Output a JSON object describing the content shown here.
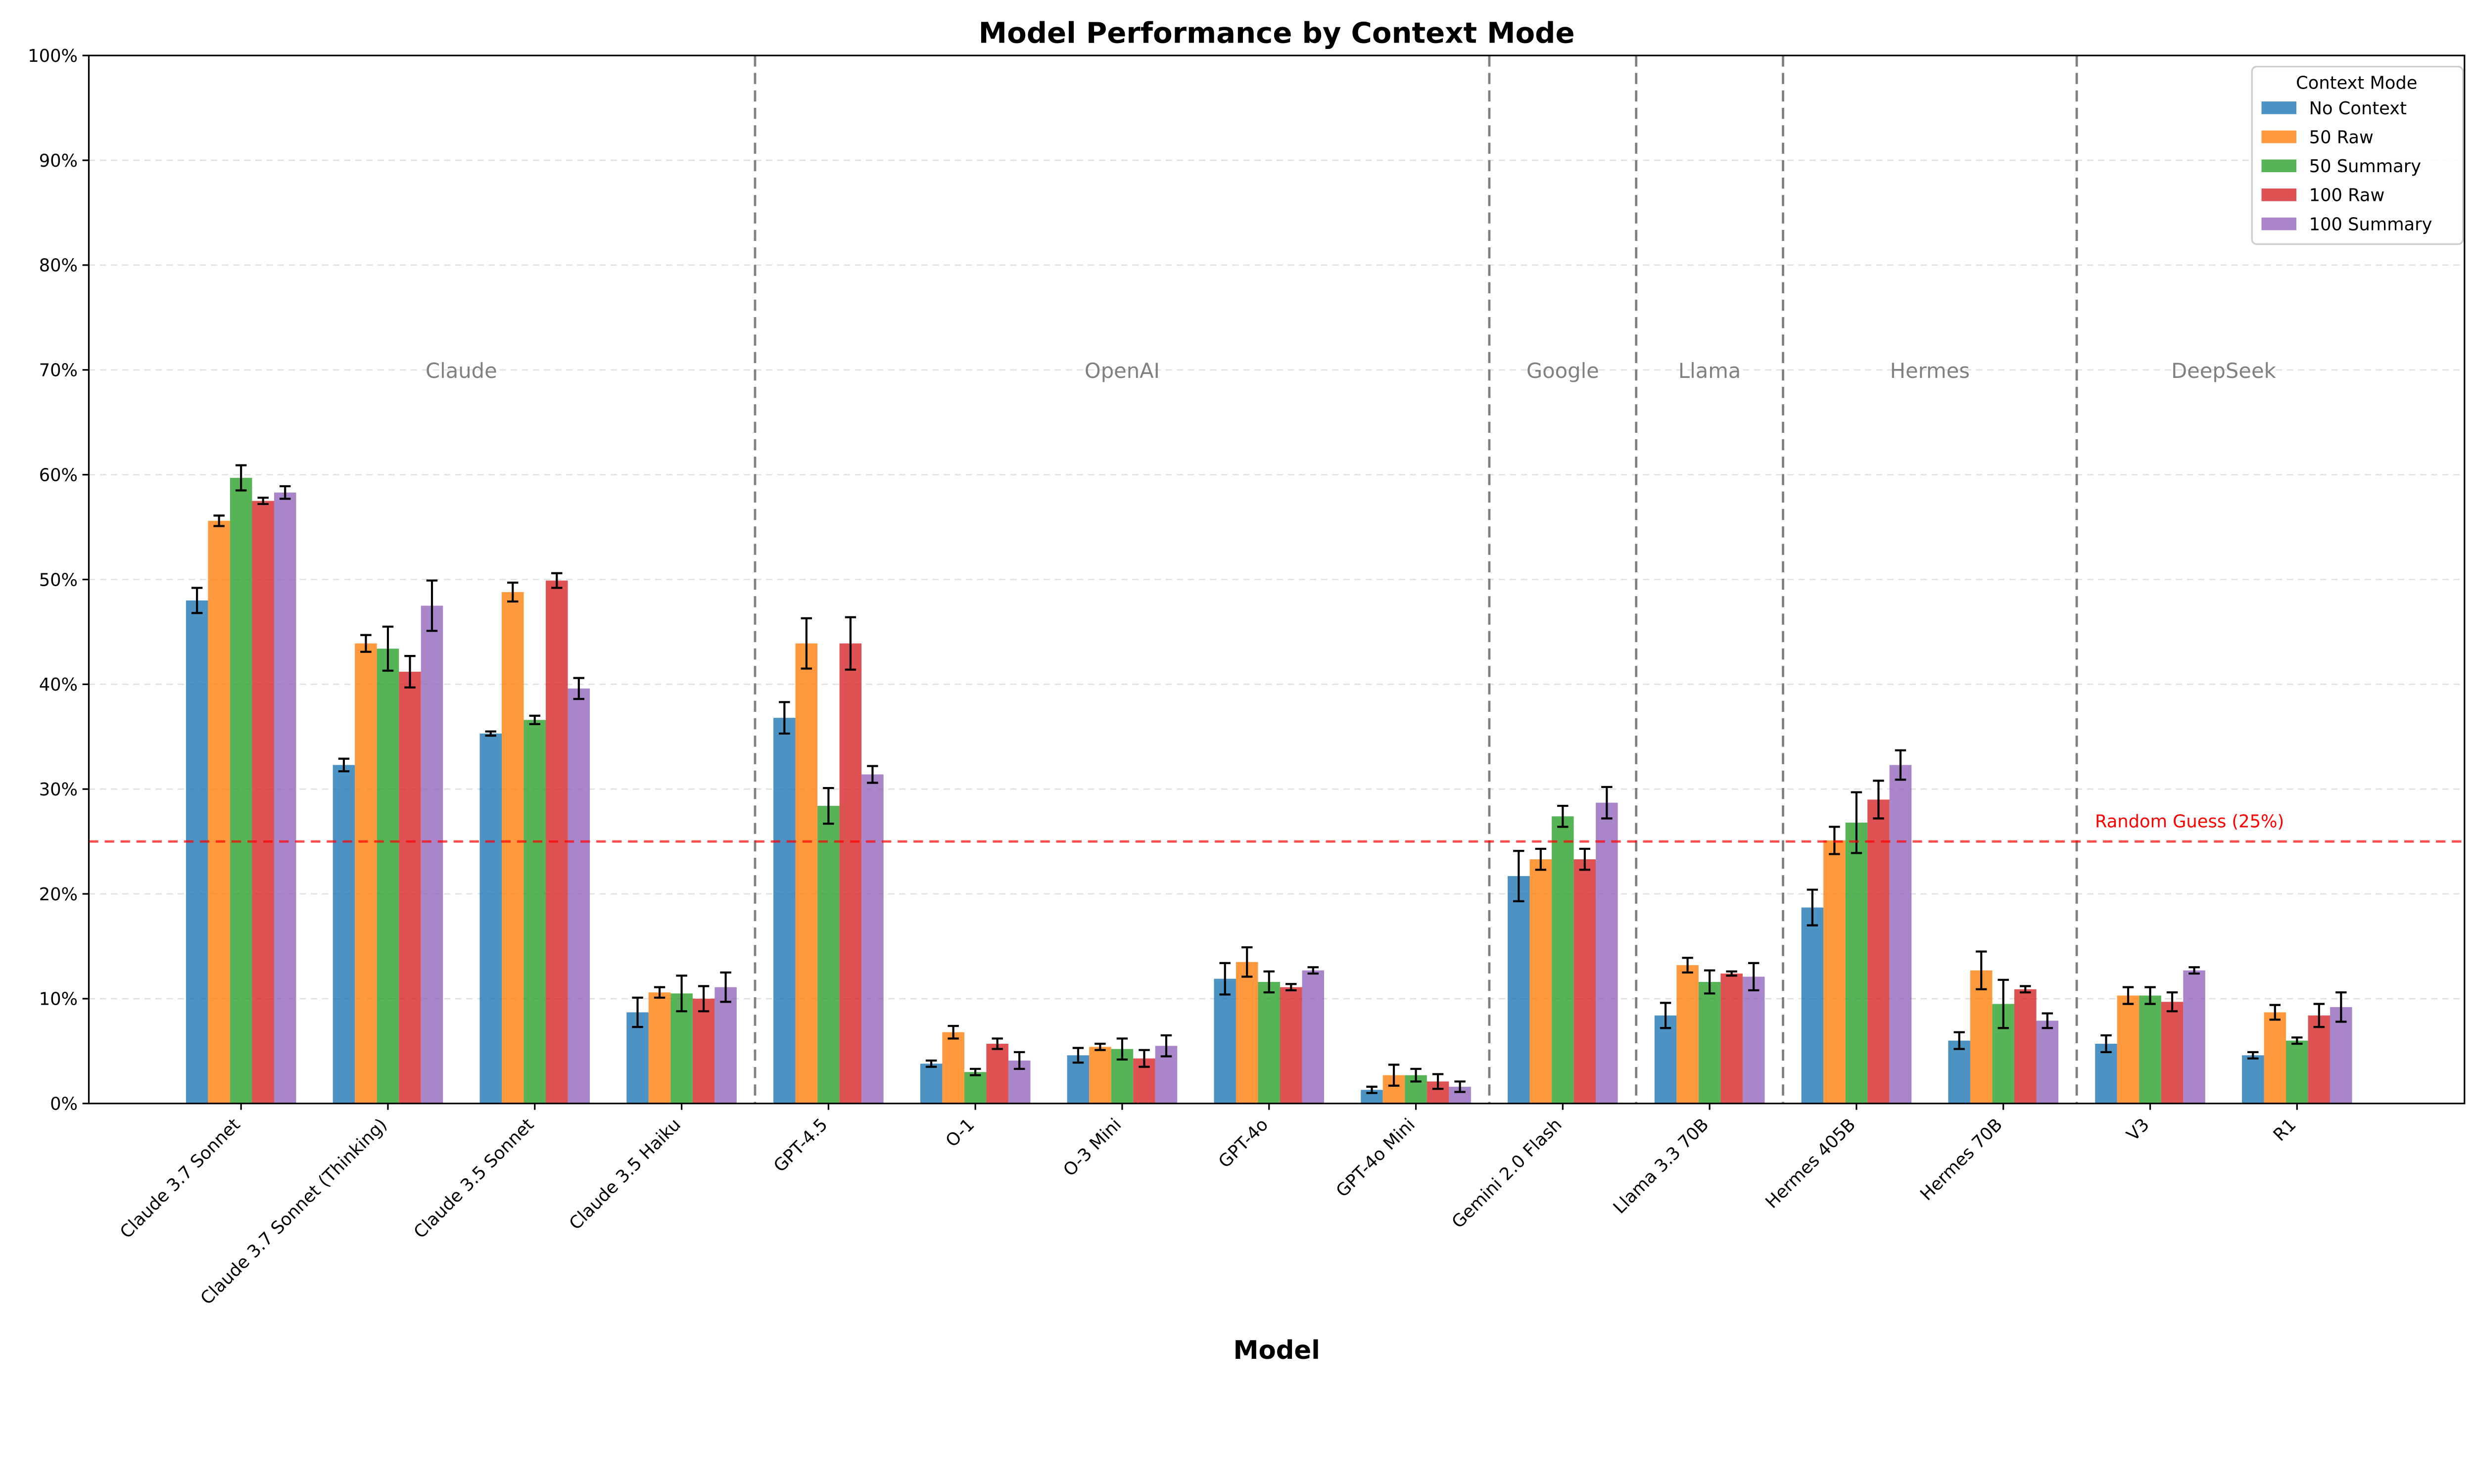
{
  "chart_data": {
    "type": "bar",
    "title": "Model Performance by Context Mode",
    "xlabel": "Model",
    "ylabel": "",
    "ylim": [
      0,
      100
    ],
    "y_unit": "%",
    "yticks": [
      "0%",
      "10%",
      "20%",
      "30%",
      "40%",
      "50%",
      "60%",
      "70%",
      "80%",
      "90%",
      "100%"
    ],
    "grid": "horizontal dashed",
    "legend": {
      "title": "Context Mode",
      "placement": "top-right"
    },
    "categories": [
      "Claude 3.7 Sonnet",
      "Claude 3.7 Sonnet (Thinking)",
      "Claude 3.5 Sonnet",
      "Claude 3.5 Haiku",
      "GPT-4.5",
      "O-1",
      "O-3 Mini",
      "GPT-4o",
      "GPT-4o Mini",
      "Gemini 2.0 Flash",
      "Llama 3.3 70B",
      "Hermes 405B",
      "Hermes 70B",
      "V3",
      "R1"
    ],
    "series": [
      {
        "name": "No Context",
        "color": "#1f77b4",
        "values": [
          48.0,
          32.3,
          35.3,
          8.7,
          36.8,
          3.8,
          4.6,
          11.9,
          1.3,
          21.7,
          8.4,
          18.7,
          6.0,
          5.7,
          4.6
        ],
        "errors": [
          1.2,
          0.6,
          0.2,
          1.4,
          1.5,
          0.3,
          0.7,
          1.5,
          0.3,
          2.4,
          1.2,
          1.7,
          0.8,
          0.8,
          0.3
        ]
      },
      {
        "name": "50 Raw",
        "color": "#ff7f0e",
        "values": [
          55.6,
          43.9,
          48.8,
          10.6,
          43.9,
          6.8,
          5.4,
          13.5,
          2.7,
          23.3,
          13.2,
          25.1,
          12.7,
          10.3,
          8.7
        ],
        "errors": [
          0.5,
          0.8,
          0.9,
          0.5,
          2.4,
          0.6,
          0.3,
          1.4,
          1.0,
          1.0,
          0.7,
          1.3,
          1.8,
          0.8,
          0.7
        ]
      },
      {
        "name": "50 Summary",
        "color": "#2ca02c",
        "values": [
          59.7,
          43.4,
          36.6,
          10.5,
          28.4,
          3.0,
          5.2,
          11.6,
          2.7,
          27.4,
          11.6,
          26.8,
          9.5,
          10.3,
          6.0
        ],
        "errors": [
          1.2,
          2.1,
          0.4,
          1.7,
          1.7,
          0.3,
          1.0,
          1.0,
          0.6,
          1.0,
          1.1,
          2.9,
          2.3,
          0.8,
          0.3
        ]
      },
      {
        "name": "100 Raw",
        "color": "#d62728",
        "values": [
          57.5,
          41.2,
          49.9,
          10.0,
          43.9,
          5.7,
          4.3,
          11.1,
          2.1,
          23.3,
          12.4,
          29.0,
          10.9,
          9.7,
          8.4
        ],
        "errors": [
          0.3,
          1.5,
          0.7,
          1.2,
          2.5,
          0.5,
          0.8,
          0.3,
          0.7,
          1.0,
          0.2,
          1.8,
          0.3,
          0.9,
          1.1
        ]
      },
      {
        "name": "100 Summary",
        "color": "#9467bd",
        "values": [
          58.3,
          47.5,
          39.6,
          11.1,
          31.4,
          4.1,
          5.5,
          12.7,
          1.6,
          28.7,
          12.1,
          32.3,
          7.9,
          12.7,
          9.2
        ],
        "errors": [
          0.6,
          2.4,
          1.0,
          1.4,
          0.8,
          0.8,
          1.0,
          0.3,
          0.5,
          1.5,
          1.3,
          1.4,
          0.7,
          0.3,
          1.4
        ]
      }
    ],
    "groups": [
      {
        "label": "Claude",
        "from": 0,
        "to": 3
      },
      {
        "label": "OpenAI",
        "from": 4,
        "to": 8
      },
      {
        "label": "Google",
        "from": 9,
        "to": 9
      },
      {
        "label": "Llama",
        "from": 10,
        "to": 10
      },
      {
        "label": "Hermes",
        "from": 11,
        "to": 12
      },
      {
        "label": "DeepSeek",
        "from": 13,
        "to": 14
      }
    ],
    "reference_line": {
      "value": 25,
      "label": "Random Guess (25%)",
      "color": "#ff0000"
    }
  }
}
